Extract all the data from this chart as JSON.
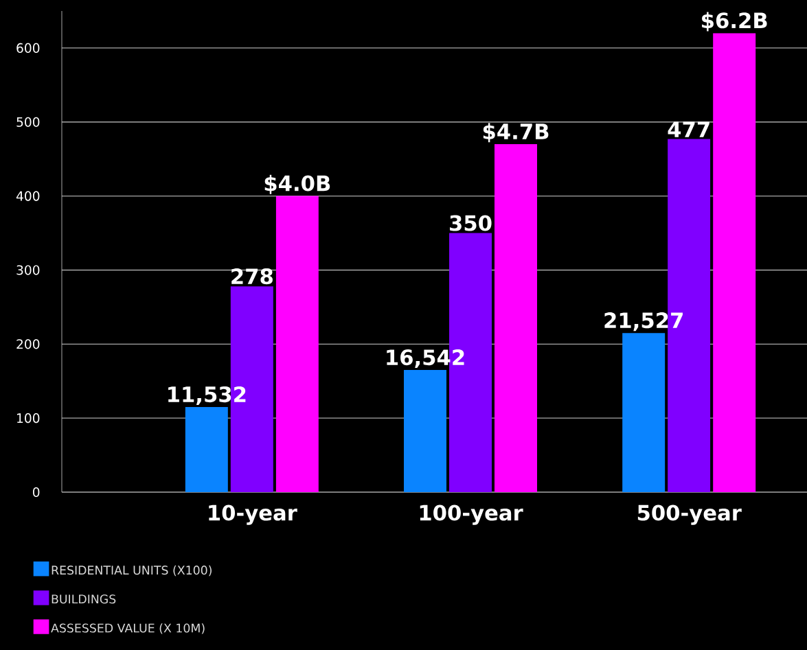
{
  "chart_data": {
    "type": "bar",
    "categories": [
      "10-year",
      "100-year",
      "500-year"
    ],
    "series": [
      {
        "name": "RESIDENTIAL UNITS (X100)",
        "color": "#0a84ff",
        "values": [
          115,
          165,
          215
        ]
      },
      {
        "name": "BUILDINGS",
        "color": "#8000ff",
        "values": [
          278,
          350,
          477
        ],
        "value_labels": [
          "278",
          "350",
          "477"
        ]
      },
      {
        "name": "ASSESSED VALUE (X 10M)",
        "color": "#ff00ff",
        "values": [
          400,
          470,
          620
        ]
      }
    ],
    "annotations": [
      "11,532",
      "16,542",
      "21,527",
      "$4.0B",
      "$4.7B",
      "$6.2B"
    ],
    "ylim": [
      0,
      650
    ],
    "yticks": [
      0,
      100,
      200,
      300,
      400,
      500,
      600
    ],
    "grid": "y",
    "legend": "bottom left"
  }
}
